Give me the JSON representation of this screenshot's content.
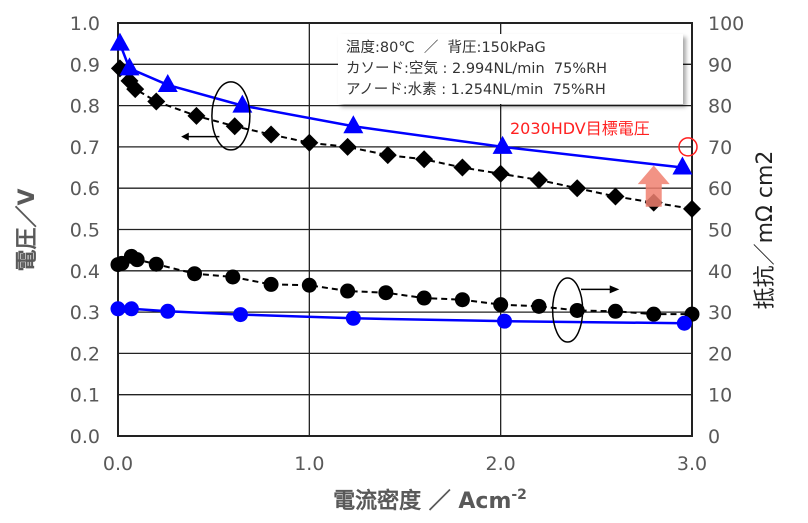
{
  "chart_data": {
    "type": "scatter",
    "xlabel": "電流密度 ／ Acm",
    "xlabel_sup": "-2",
    "ylabel": "電圧／V",
    "y2label": "抵抗／mΩ cm2",
    "xlim": [
      0,
      3.0
    ],
    "ylim": [
      0,
      1.0
    ],
    "y2lim": [
      0,
      100
    ],
    "grid": true,
    "x_ticks": [
      "0.0",
      "1.0",
      "2.0",
      "3.0"
    ],
    "y_ticks": [
      "0.0",
      "0.1",
      "0.2",
      "0.3",
      "0.4",
      "0.5",
      "0.6",
      "0.7",
      "0.8",
      "0.9",
      "1.0"
    ],
    "y2_ticks": [
      "0",
      "10",
      "20",
      "30",
      "40",
      "50",
      "60",
      "70",
      "80",
      "90",
      "100"
    ],
    "series": [
      {
        "marker": "diamond",
        "color": "#000000",
        "line": "dashed",
        "axis": "left",
        "x": [
          0.01,
          0.06,
          0.09,
          0.2,
          0.41,
          0.61,
          0.8,
          1.0,
          1.2,
          1.41,
          1.6,
          1.8,
          2.0,
          2.2,
          2.4,
          2.6,
          2.8,
          3.0
        ],
        "y": [
          0.89,
          0.86,
          0.84,
          0.81,
          0.775,
          0.75,
          0.73,
          0.71,
          0.7,
          0.68,
          0.67,
          0.65,
          0.635,
          0.62,
          0.6,
          0.58,
          0.565,
          0.55
        ]
      },
      {
        "marker": "triangle",
        "color": "#0000ff",
        "line": "solid",
        "axis": "left",
        "x": [
          0.01,
          0.06,
          0.26,
          0.65,
          1.23,
          2.01,
          2.95
        ],
        "y": [
          0.95,
          0.89,
          0.85,
          0.8,
          0.75,
          0.7,
          0.65
        ]
      },
      {
        "marker": "circle",
        "color": "#000000",
        "line": "dashed",
        "axis": "right",
        "x": [
          0.0,
          0.02,
          0.07,
          0.1,
          0.2,
          0.4,
          0.6,
          0.8,
          1.0,
          1.2,
          1.4,
          1.6,
          1.8,
          2.0,
          2.2,
          2.4,
          2.6,
          2.8,
          3.0
        ],
        "y": [
          41.5,
          41.8,
          43.5,
          42.7,
          41.6,
          39.3,
          38.5,
          36.7,
          36.5,
          35.1,
          34.7,
          33.4,
          33.0,
          31.8,
          31.4,
          30.4,
          30.2,
          29.5,
          29.5
        ]
      },
      {
        "marker": "circle",
        "color": "#0000ff",
        "line": "solid",
        "axis": "right",
        "x": [
          0.0,
          0.07,
          0.26,
          0.64,
          1.23,
          2.02,
          2.96
        ],
        "y": [
          30.8,
          30.8,
          30.2,
          29.4,
          28.5,
          27.8,
          27.3
        ]
      }
    ],
    "annotations": {
      "conditions": [
        "温度:80℃  ／  背圧:150kPaG",
        "カソード:空気 : 2.994NL/min  75%RH",
        "アノード:水素 : 1.254NL/min  75%RH"
      ],
      "target_label": "2030HDV目標電圧",
      "target_value": 0.7,
      "target_color": "#ff2020",
      "arrow_color": "#f08070"
    }
  }
}
